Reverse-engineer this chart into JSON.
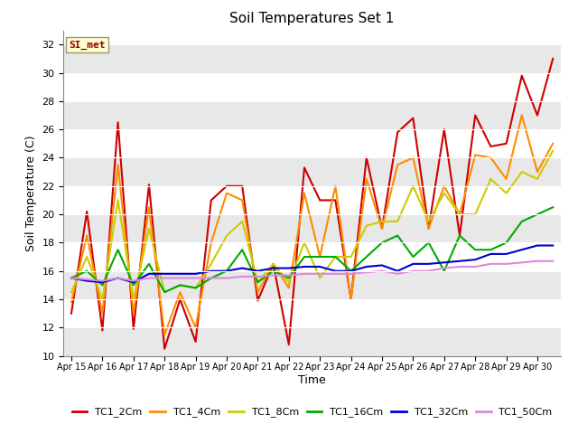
{
  "title": "Soil Temperatures Set 1",
  "xlabel": "Time",
  "ylabel": "Soil Temperature (C)",
  "ylim": [
    10,
    33
  ],
  "yticks": [
    10,
    12,
    14,
    16,
    18,
    20,
    22,
    24,
    26,
    28,
    30,
    32
  ],
  "annotation_text": "SI_met",
  "annotation_color": "#8B0000",
  "annotation_bg": "#FFFFCC",
  "fig_bg": "#FFFFFF",
  "plot_bg": "#FFFFFF",
  "grid_color": "#DCDCDC",
  "x_labels": [
    "Apr 15",
    "Apr 16",
    "Apr 17",
    "Apr 18",
    "Apr 19",
    "Apr 20",
    "Apr 21",
    "Apr 22",
    "Apr 23",
    "Apr 24",
    "Apr 25",
    "Apr 26",
    "Apr 27",
    "Apr 28",
    "Apr 29",
    "Apr 30"
  ],
  "series": {
    "TC1_2Cm": {
      "color": "#CC0000",
      "data": [
        13.0,
        20.2,
        11.8,
        26.5,
        11.9,
        22.1,
        10.5,
        14.0,
        11.0,
        21.0,
        22.0,
        22.0,
        13.9,
        16.5,
        10.8,
        23.3,
        21.0,
        21.0,
        14.0,
        24.0,
        19.0,
        25.8,
        26.8,
        19.0,
        26.0,
        18.5,
        27.0,
        24.8,
        25.0,
        29.8,
        27.0,
        31.0
      ]
    },
    "TC1_4Cm": {
      "color": "#FF8C00",
      "data": [
        13.8,
        18.5,
        13.0,
        23.5,
        13.0,
        20.5,
        11.5,
        14.5,
        12.0,
        18.0,
        21.5,
        21.0,
        14.5,
        16.5,
        14.8,
        21.5,
        17.0,
        22.0,
        14.0,
        22.5,
        19.0,
        23.5,
        24.0,
        19.0,
        22.0,
        20.0,
        24.2,
        24.0,
        22.5,
        27.0,
        23.0,
        25.0
      ]
    },
    "TC1_8Cm": {
      "color": "#CCCC00",
      "data": [
        14.5,
        17.0,
        14.0,
        21.0,
        14.0,
        19.0,
        14.5,
        15.0,
        14.8,
        16.5,
        18.5,
        19.5,
        15.2,
        16.5,
        15.2,
        18.0,
        15.5,
        17.0,
        17.0,
        19.2,
        19.5,
        19.5,
        22.0,
        19.5,
        21.5,
        20.0,
        20.0,
        22.5,
        21.5,
        23.0,
        22.5,
        24.5
      ]
    },
    "TC1_16Cm": {
      "color": "#00AA00",
      "data": [
        15.5,
        16.0,
        15.0,
        17.5,
        15.0,
        16.5,
        14.5,
        15.0,
        14.8,
        15.5,
        16.0,
        17.5,
        15.2,
        16.0,
        15.5,
        17.0,
        17.0,
        17.0,
        16.0,
        17.0,
        18.0,
        18.5,
        17.0,
        18.0,
        16.0,
        18.5,
        17.5,
        17.5,
        18.0,
        19.5,
        20.0,
        20.5
      ]
    },
    "TC1_32Cm": {
      "color": "#0000CC",
      "data": [
        15.5,
        15.3,
        15.2,
        15.5,
        15.2,
        15.8,
        15.8,
        15.8,
        15.8,
        16.0,
        16.0,
        16.2,
        16.0,
        16.2,
        16.2,
        16.3,
        16.3,
        16.0,
        16.0,
        16.3,
        16.4,
        16.0,
        16.5,
        16.5,
        16.6,
        16.7,
        16.8,
        17.2,
        17.2,
        17.5,
        17.8,
        17.8
      ]
    },
    "TC1_50Cm": {
      "color": "#DD88DD",
      "data": [
        15.5,
        15.4,
        15.3,
        15.5,
        15.3,
        15.5,
        15.5,
        15.5,
        15.5,
        15.5,
        15.5,
        15.6,
        15.6,
        15.7,
        15.7,
        15.8,
        15.8,
        15.8,
        15.8,
        15.9,
        16.0,
        15.8,
        16.0,
        16.0,
        16.2,
        16.3,
        16.3,
        16.5,
        16.5,
        16.6,
        16.7,
        16.7
      ]
    }
  }
}
